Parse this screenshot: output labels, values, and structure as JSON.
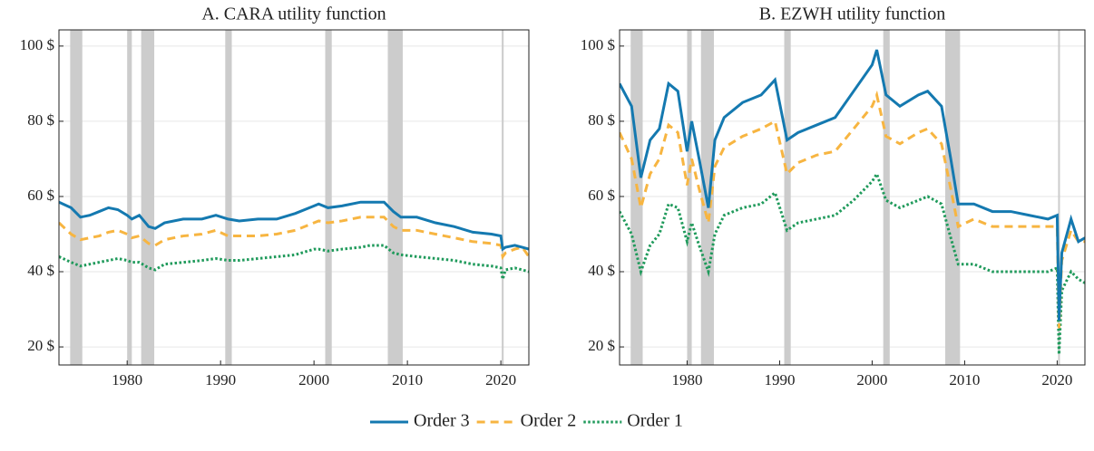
{
  "chart_data": [
    {
      "type": "line",
      "title": "A. CARA utility function",
      "x": [
        1972.7,
        1974,
        1975,
        1976,
        1977,
        1978,
        1979,
        1980,
        1980.5,
        1981.3,
        1982.3,
        1983,
        1984,
        1986,
        1988,
        1989.5,
        1990.8,
        1992,
        1994,
        1996,
        1998,
        2000,
        2000.5,
        2001.5,
        2003,
        2005,
        2006,
        2007.5,
        2008.5,
        2009.3,
        2011,
        2013,
        2015,
        2017,
        2019,
        2020,
        2020.2,
        2020.5,
        2021.5,
        2022.3,
        2023
      ],
      "series": [
        {
          "name": "Order 3",
          "color": "#1479b0",
          "linestyle": "solid",
          "values": [
            58.5,
            57,
            54.5,
            55,
            56,
            57,
            56.5,
            55,
            54,
            55,
            52,
            51.5,
            53,
            54,
            54,
            55,
            54,
            53.5,
            54,
            54,
            55.5,
            57.5,
            58,
            57,
            57.5,
            58.5,
            58.5,
            58.5,
            56,
            54.5,
            54.5,
            53,
            52,
            50.5,
            50,
            49.5,
            46,
            46.5,
            47,
            46.5,
            46
          ]
        },
        {
          "name": "Order 2",
          "color": "#f7b541",
          "linestyle": "dashed",
          "values": [
            53,
            50,
            48.5,
            49,
            49.5,
            50.5,
            51,
            50,
            49,
            49.5,
            47.5,
            47,
            48.5,
            49.5,
            50,
            51,
            49.5,
            49.5,
            49.5,
            50,
            51,
            53,
            53.5,
            53,
            53.5,
            54.5,
            54.5,
            54.5,
            52,
            51,
            51,
            50,
            49,
            48,
            47.5,
            47,
            44,
            45,
            46,
            46.5,
            44
          ]
        },
        {
          "name": "Order 1",
          "color": "#1f9a5b",
          "linestyle": "dotted",
          "values": [
            44,
            42.5,
            41.5,
            42,
            42.5,
            43,
            43.5,
            43,
            42.5,
            42.5,
            41,
            40.5,
            42,
            42.5,
            43,
            43.5,
            43,
            43,
            43.5,
            44,
            44.5,
            46,
            46,
            45.5,
            46,
            46.5,
            47,
            47,
            45,
            44.5,
            44,
            43.5,
            43,
            42,
            41.5,
            41,
            38,
            40.5,
            41,
            40.5,
            40
          ]
        }
      ],
      "recessions": [
        [
          1973.9,
          1975.2
        ],
        [
          1980.0,
          1980.5
        ],
        [
          1981.5,
          1982.9
        ],
        [
          1990.5,
          1991.2
        ],
        [
          2001.2,
          2001.9
        ],
        [
          2007.9,
          2009.5
        ],
        [
          2020.1,
          2020.3
        ]
      ],
      "xlim": [
        1972.7,
        2023
      ],
      "xticks": [
        1980,
        1990,
        2000,
        2010,
        2020
      ],
      "ylim": [
        15.2,
        104.3
      ],
      "yticks": [
        {
          "value": 20,
          "label": "20 $"
        },
        {
          "value": 40,
          "label": "40 $"
        },
        {
          "value": 60,
          "label": "60 $"
        },
        {
          "value": 80,
          "label": "80 $"
        },
        {
          "value": 100,
          "label": "100 $"
        }
      ],
      "grid": true
    },
    {
      "type": "line",
      "title": "B. EZWH utility function",
      "x": [
        1972.7,
        1974,
        1975,
        1976,
        1977,
        1978,
        1979,
        1980,
        1980.5,
        1981.3,
        1982.3,
        1983,
        1984,
        1986,
        1988,
        1989.5,
        1990.8,
        1992,
        1994,
        1996,
        1998,
        2000,
        2000.5,
        2001.5,
        2003,
        2005,
        2006,
        2007.5,
        2008.5,
        2009.3,
        2011,
        2013,
        2015,
        2017,
        2019,
        2020,
        2020.2,
        2020.5,
        2021.5,
        2022.3,
        2023
      ],
      "series": [
        {
          "name": "Order 3",
          "color": "#1479b0",
          "linestyle": "solid",
          "values": [
            90,
            84,
            65,
            75,
            78,
            90,
            88,
            72,
            80,
            70,
            57,
            75,
            81,
            85,
            87,
            91,
            75,
            77,
            79,
            81,
            88,
            95,
            99,
            87,
            84,
            87,
            88,
            84,
            70,
            58,
            58,
            56,
            56,
            55,
            54,
            55,
            27,
            45,
            54,
            48,
            49
          ]
        },
        {
          "name": "Order 2",
          "color": "#f7b541",
          "linestyle": "dashed",
          "values": [
            77,
            70,
            57,
            66,
            70,
            79,
            77,
            63,
            70,
            62,
            53,
            68,
            73,
            76,
            78,
            80,
            66,
            69,
            71,
            72,
            78,
            84,
            87,
            76,
            74,
            77,
            78,
            74,
            62,
            52,
            54,
            52,
            52,
            52,
            52,
            52,
            25,
            43,
            51,
            48,
            48
          ]
        },
        {
          "name": "Order 1",
          "color": "#1f9a5b",
          "linestyle": "dotted",
          "values": [
            56,
            50,
            40,
            47,
            50,
            58,
            57,
            48,
            53,
            47,
            40,
            50,
            55,
            57,
            58,
            61,
            51,
            53,
            54,
            55,
            59,
            64,
            66,
            59,
            57,
            59,
            60,
            58,
            49,
            42,
            42,
            40,
            40,
            40,
            40,
            41,
            18,
            35,
            40,
            38,
            37
          ]
        }
      ],
      "recessions": [
        [
          1973.9,
          1975.2
        ],
        [
          1980.0,
          1980.5
        ],
        [
          1981.5,
          1982.9
        ],
        [
          1990.5,
          1991.2
        ],
        [
          2001.2,
          2001.9
        ],
        [
          2007.9,
          2009.5
        ],
        [
          2020.1,
          2020.3
        ]
      ],
      "xlim": [
        1972.7,
        2023
      ],
      "xticks": [
        1980,
        1990,
        2000,
        2010,
        2020
      ],
      "ylim": [
        15.2,
        104.3
      ],
      "yticks": [
        {
          "value": 20,
          "label": "20 $"
        },
        {
          "value": 40,
          "label": "40 $"
        },
        {
          "value": 60,
          "label": "60 $"
        },
        {
          "value": 80,
          "label": "80 $"
        },
        {
          "value": 100,
          "label": "100 $"
        }
      ],
      "grid": true
    }
  ]
}
